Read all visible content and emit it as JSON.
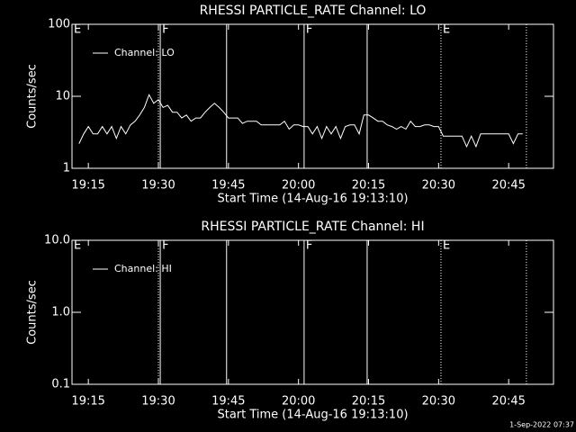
{
  "chart_data": [
    {
      "type": "line",
      "title": "RHESSI PARTICLE_RATE Channel: LO",
      "xlabel": "Start Time (14-Aug-16 19:13:10)",
      "ylabel": "Counts/sec",
      "log_y": true,
      "xlim": [
        1151.5,
        1254.6
      ],
      "xticks": [
        {
          "value": 1155,
          "label": "19:15"
        },
        {
          "value": 1170,
          "label": "19:30"
        },
        {
          "value": 1185,
          "label": "19:45"
        },
        {
          "value": 1200,
          "label": "20:00"
        },
        {
          "value": 1215,
          "label": "20:15"
        },
        {
          "value": 1230,
          "label": "20:30"
        },
        {
          "value": 1245,
          "label": "20:45"
        }
      ],
      "ylim": [
        1,
        100
      ],
      "yticks": [
        1,
        10,
        100
      ],
      "markers": [
        {
          "x": 1151.5,
          "label": "E",
          "style": "solid"
        },
        {
          "x": 1170,
          "style": "dotted"
        },
        {
          "x": 1170.4,
          "label": "F",
          "style": "solid"
        },
        {
          "x": 1184.6,
          "style": "solid"
        },
        {
          "x": 1201.2,
          "label": "F",
          "style": "solid"
        },
        {
          "x": 1214.7,
          "style": "solid"
        },
        {
          "x": 1230.5,
          "label": "E",
          "style": "dotted"
        },
        {
          "x": 1248.8,
          "style": "dotted"
        }
      ],
      "series": [
        {
          "name": "Channel: LO",
          "color": "#ffffff",
          "x": [
            1153,
            1154,
            1155,
            1156,
            1157,
            1158,
            1159,
            1160,
            1161,
            1162,
            1163,
            1164,
            1165,
            1166,
            1167,
            1168,
            1169,
            1170,
            1171,
            1172,
            1173,
            1174,
            1175,
            1176,
            1177,
            1178,
            1179,
            1180,
            1181,
            1182,
            1183,
            1184,
            1185,
            1186,
            1187,
            1188,
            1189,
            1190,
            1191,
            1192,
            1193,
            1194,
            1195,
            1196,
            1197,
            1198,
            1199,
            1200,
            1201,
            1202,
            1203,
            1204,
            1205,
            1206,
            1207,
            1208,
            1209,
            1210,
            1211,
            1212,
            1213,
            1214,
            1215,
            1216,
            1217,
            1218,
            1219,
            1220,
            1221,
            1222,
            1223,
            1224,
            1225,
            1226,
            1227,
            1228,
            1229,
            1230,
            1231,
            1232,
            1233,
            1234,
            1235,
            1236,
            1237,
            1238,
            1239,
            1240,
            1241,
            1242,
            1243,
            1244,
            1245,
            1246,
            1247,
            1248
          ],
          "values": [
            2.2,
            3,
            3.8,
            3,
            3,
            3.8,
            3,
            3.8,
            2.6,
            3.8,
            3,
            4,
            4.5,
            5.5,
            7,
            10.5,
            8,
            9,
            7,
            7.5,
            6,
            6,
            5,
            5.5,
            4.5,
            5,
            5,
            6,
            7,
            8,
            7,
            6,
            5,
            5,
            5,
            4.2,
            4.5,
            4.5,
            4.5,
            4,
            4,
            4,
            4,
            4,
            4.5,
            3.5,
            4,
            4,
            3.8,
            3.8,
            3,
            3.8,
            2.6,
            3.8,
            3,
            3.8,
            2.6,
            3.8,
            4,
            4,
            3,
            5.5,
            5.5,
            5,
            4.5,
            4.5,
            4,
            3.8,
            3.5,
            3.8,
            3.5,
            4.5,
            3.8,
            3.8,
            4,
            4,
            3.8,
            3.8,
            2.8,
            2.8,
            2.8,
            2.8,
            2.8,
            2,
            2.8,
            2,
            3,
            3,
            3,
            3,
            3,
            3,
            3,
            2.2,
            3,
            3
          ]
        }
      ]
    },
    {
      "type": "line",
      "title": "RHESSI PARTICLE_RATE Channel: HI",
      "xlabel": "Start Time (14-Aug-16 19:13:10)",
      "ylabel": "Counts/sec",
      "log_y": true,
      "xlim": [
        1151.5,
        1254.6
      ],
      "xticks": [
        {
          "value": 1155,
          "label": "19:15"
        },
        {
          "value": 1170,
          "label": "19:30"
        },
        {
          "value": 1185,
          "label": "19:45"
        },
        {
          "value": 1200,
          "label": "20:00"
        },
        {
          "value": 1215,
          "label": "20:15"
        },
        {
          "value": 1230,
          "label": "20:30"
        },
        {
          "value": 1245,
          "label": "20:45"
        }
      ],
      "ylim": [
        0.1,
        10
      ],
      "yticks": [
        0.1,
        {
          "value": 1,
          "label": "1.0"
        },
        {
          "value": 10,
          "label": "10.0"
        }
      ],
      "markers": [
        {
          "x": 1151.5,
          "label": "E",
          "style": "solid"
        },
        {
          "x": 1170,
          "style": "dotted"
        },
        {
          "x": 1170.4,
          "label": "F",
          "style": "solid"
        },
        {
          "x": 1184.6,
          "style": "solid"
        },
        {
          "x": 1201.2,
          "label": "F",
          "style": "solid"
        },
        {
          "x": 1214.7,
          "style": "solid"
        },
        {
          "x": 1230.5,
          "label": "E",
          "style": "dotted"
        },
        {
          "x": 1248.8,
          "style": "dotted"
        }
      ],
      "series": [
        {
          "name": "Channel: HI",
          "color": "#ffffff",
          "x": [],
          "values": []
        }
      ]
    }
  ],
  "footer": "1-Sep-2022 07:37"
}
